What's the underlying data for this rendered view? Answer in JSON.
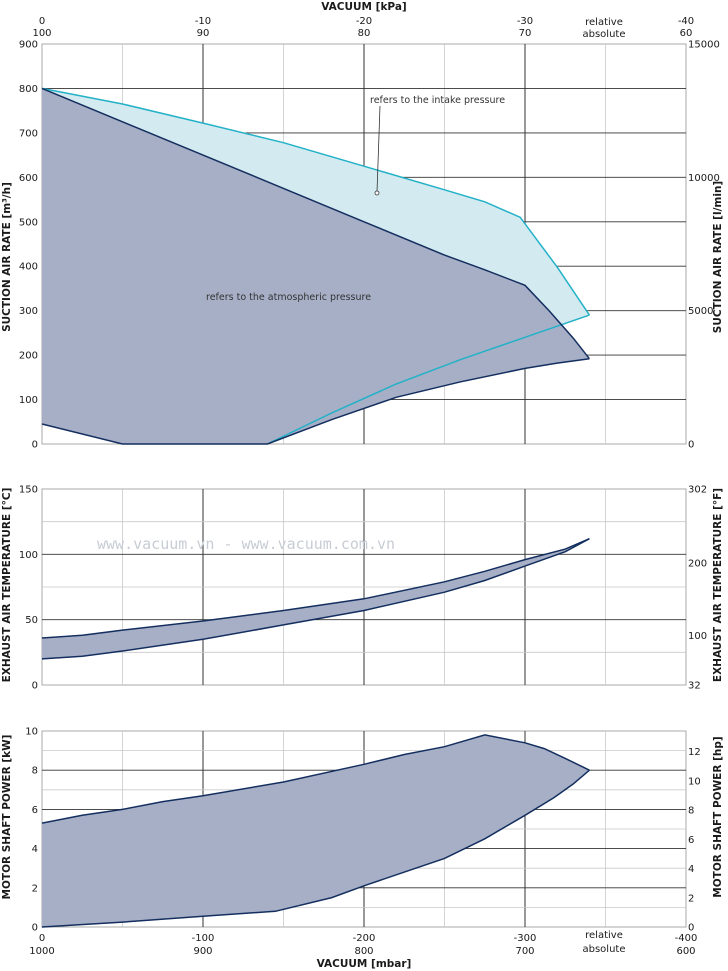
{
  "watermark": "www.vacuum.vn - www.vacuum.com.vn",
  "colors": {
    "atm_fill": "#a7afc7",
    "atm_line": "#142f5f",
    "intake_fill": "#d3eaf1",
    "intake_line": "#23b1c7",
    "grid": "#c9c9c9",
    "frame": "#aaaaaa",
    "major_grid": "#333333"
  },
  "top_axis": {
    "title": "VACUUM  [kPa]",
    "relative_ticks": [
      "0",
      "-10",
      "-20",
      "-30",
      "-40"
    ],
    "absolute_ticks": [
      "100",
      "90",
      "80",
      "70",
      "60"
    ],
    "relative_label": "relative",
    "absolute_label": "absolute"
  },
  "bottom_axis": {
    "title": "VACUUM  [mbar]",
    "relative_ticks": [
      "0",
      "-100",
      "-200",
      "-300",
      "-400"
    ],
    "absolute_ticks": [
      "1000",
      "900",
      "800",
      "700",
      "600"
    ],
    "relative_label": "relative",
    "absolute_label": "absolute"
  },
  "chart_data": [
    {
      "type": "area",
      "xlabel": "VACUUM [mbar]",
      "ylabel": "SUCTION AIR RATE  [m³/h]",
      "y2label": "SUCTION AIR RATE  [l/min]",
      "xlim": [
        0,
        -400
      ],
      "ylim": [
        0,
        900
      ],
      "y_ticks": [
        0,
        100,
        200,
        300,
        400,
        500,
        600,
        700,
        800,
        900
      ],
      "y2_ticks": [
        [
          "0",
          0
        ],
        [
          "5000",
          300
        ],
        [
          "10000",
          600
        ],
        [
          "15000",
          900
        ]
      ],
      "annotations": {
        "atmospheric": "refers to the atmospheric pressure",
        "intake": "refers to the intake pressure"
      },
      "series": [
        {
          "role": "atmospheric",
          "upper": [
            [
              0,
              800
            ],
            [
              -50,
              725
            ],
            [
              -100,
              650
            ],
            [
              -150,
              575
            ],
            [
              -200,
              500
            ],
            [
              -250,
              425
            ],
            [
              -275,
              392
            ],
            [
              -300,
              357
            ],
            [
              -315,
              300
            ],
            [
              -330,
              238
            ],
            [
              -340,
              192
            ]
          ],
          "lower": [
            [
              0,
              45
            ],
            [
              -50,
              0
            ],
            [
              -140,
              0
            ],
            [
              -180,
              55
            ],
            [
              -220,
              105
            ],
            [
              -260,
              140
            ],
            [
              -300,
              170
            ],
            [
              -320,
              182
            ],
            [
              -340,
              192
            ]
          ]
        },
        {
          "role": "intake",
          "upper": [
            [
              0,
              800
            ],
            [
              -50,
              765
            ],
            [
              -100,
              722
            ],
            [
              -150,
              678
            ],
            [
              -200,
              625
            ],
            [
              -250,
              572
            ],
            [
              -275,
              545
            ],
            [
              -297,
              510
            ],
            [
              -320,
              398
            ],
            [
              -340,
              290
            ]
          ],
          "lower": [
            [
              -140,
              0
            ],
            [
              -180,
              70
            ],
            [
              -220,
              135
            ],
            [
              -260,
              190
            ],
            [
              -300,
              240
            ],
            [
              -340,
              290
            ]
          ]
        }
      ]
    },
    {
      "type": "area",
      "ylabel": "EXHAUST AIR TEMPERATURE  [°C]",
      "y2label": "EXHAUST AIR TEMPERATURE  [°F]",
      "xlim": [
        0,
        -400
      ],
      "ylim": [
        0,
        150
      ],
      "y_ticks": [
        0,
        50,
        100,
        150
      ],
      "y2_ticks": [
        [
          "32",
          0
        ],
        [
          "100",
          37.8
        ],
        [
          "200",
          93.3
        ],
        [
          "302",
          150
        ]
      ],
      "upper": [
        [
          0,
          36
        ],
        [
          -25,
          38
        ],
        [
          -50,
          42
        ],
        [
          -100,
          49
        ],
        [
          -150,
          57
        ],
        [
          -200,
          66
        ],
        [
          -250,
          79
        ],
        [
          -275,
          87
        ],
        [
          -300,
          96
        ],
        [
          -325,
          104
        ],
        [
          -340,
          112
        ]
      ],
      "lower": [
        [
          0,
          20
        ],
        [
          -25,
          22
        ],
        [
          -50,
          26
        ],
        [
          -100,
          35
        ],
        [
          -150,
          46
        ],
        [
          -200,
          57
        ],
        [
          -250,
          71
        ],
        [
          -275,
          80
        ],
        [
          -300,
          91
        ],
        [
          -325,
          102
        ],
        [
          -340,
          112
        ]
      ]
    },
    {
      "type": "area",
      "ylabel": "MOTOR SHAFT POWER  [kW]",
      "y2label": "MOTOR SHAFT POWER  [hp]",
      "xlim": [
        0,
        -400
      ],
      "ylim": [
        0,
        10
      ],
      "y_ticks": [
        0,
        2,
        4,
        6,
        8,
        10
      ],
      "y2_ticks": [
        [
          "0",
          0
        ],
        [
          "2",
          1.49
        ],
        [
          "4",
          2.98
        ],
        [
          "6",
          4.47
        ],
        [
          "8",
          5.97
        ],
        [
          "10",
          7.46
        ],
        [
          "12",
          8.95
        ]
      ],
      "upper": [
        [
          0,
          5.3
        ],
        [
          -25,
          5.7
        ],
        [
          -50,
          6.0
        ],
        [
          -75,
          6.4
        ],
        [
          -100,
          6.7
        ],
        [
          -150,
          7.4
        ],
        [
          -200,
          8.3
        ],
        [
          -225,
          8.8
        ],
        [
          -250,
          9.2
        ],
        [
          -275,
          9.8
        ],
        [
          -300,
          9.4
        ],
        [
          -312,
          9.1
        ],
        [
          -325,
          8.6
        ],
        [
          -340,
          8.0
        ]
      ],
      "lower": [
        [
          0,
          0
        ],
        [
          -50,
          0.25
        ],
        [
          -100,
          0.55
        ],
        [
          -145,
          0.8
        ],
        [
          -180,
          1.5
        ],
        [
          -200,
          2.1
        ],
        [
          -250,
          3.5
        ],
        [
          -275,
          4.5
        ],
        [
          -300,
          5.7
        ],
        [
          -318,
          6.6
        ],
        [
          -330,
          7.3
        ],
        [
          -340,
          8.0
        ]
      ]
    }
  ]
}
